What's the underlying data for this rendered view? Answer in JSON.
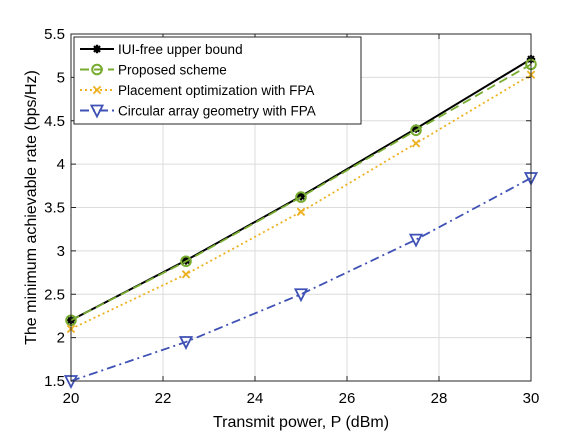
{
  "chart_data": {
    "type": "line",
    "title": "",
    "xlabel": "Transmit power, P (dBm)",
    "ylabel": "The minimum achievable rate (bps/Hz)",
    "xlim": [
      20,
      30
    ],
    "ylim": [
      1.5,
      5.5
    ],
    "x_ticks": [
      "20",
      "22",
      "24",
      "26",
      "28",
      "30"
    ],
    "y_ticks": [
      "1.5",
      "2",
      "2.5",
      "3",
      "3.5",
      "4",
      "4.5",
      "5",
      "5.5"
    ],
    "grid": true,
    "legend_position": "top-left",
    "x": [
      20,
      22.5,
      25,
      27.5,
      30
    ],
    "series": [
      {
        "name": "IUI-free upper bound",
        "values": [
          2.2,
          2.89,
          3.63,
          4.41,
          5.21
        ],
        "color": "#000000",
        "line_style": "solid",
        "marker": "asterisk"
      },
      {
        "name": "Proposed scheme",
        "values": [
          2.2,
          2.88,
          3.62,
          4.39,
          5.15
        ],
        "color": "#77ac30",
        "line_style": "dashed",
        "marker": "circle"
      },
      {
        "name": "Placement optimization with FPA",
        "values": [
          2.1,
          2.73,
          3.45,
          4.24,
          5.03
        ],
        "color": "#edb120",
        "line_style": "dotted",
        "marker": "x"
      },
      {
        "name": "Circular array geometry with FPA",
        "values": [
          1.5,
          1.95,
          2.5,
          3.13,
          3.84
        ],
        "color": "#3f51b5",
        "line_style": "dashdot",
        "marker": "triangle-down"
      }
    ]
  }
}
